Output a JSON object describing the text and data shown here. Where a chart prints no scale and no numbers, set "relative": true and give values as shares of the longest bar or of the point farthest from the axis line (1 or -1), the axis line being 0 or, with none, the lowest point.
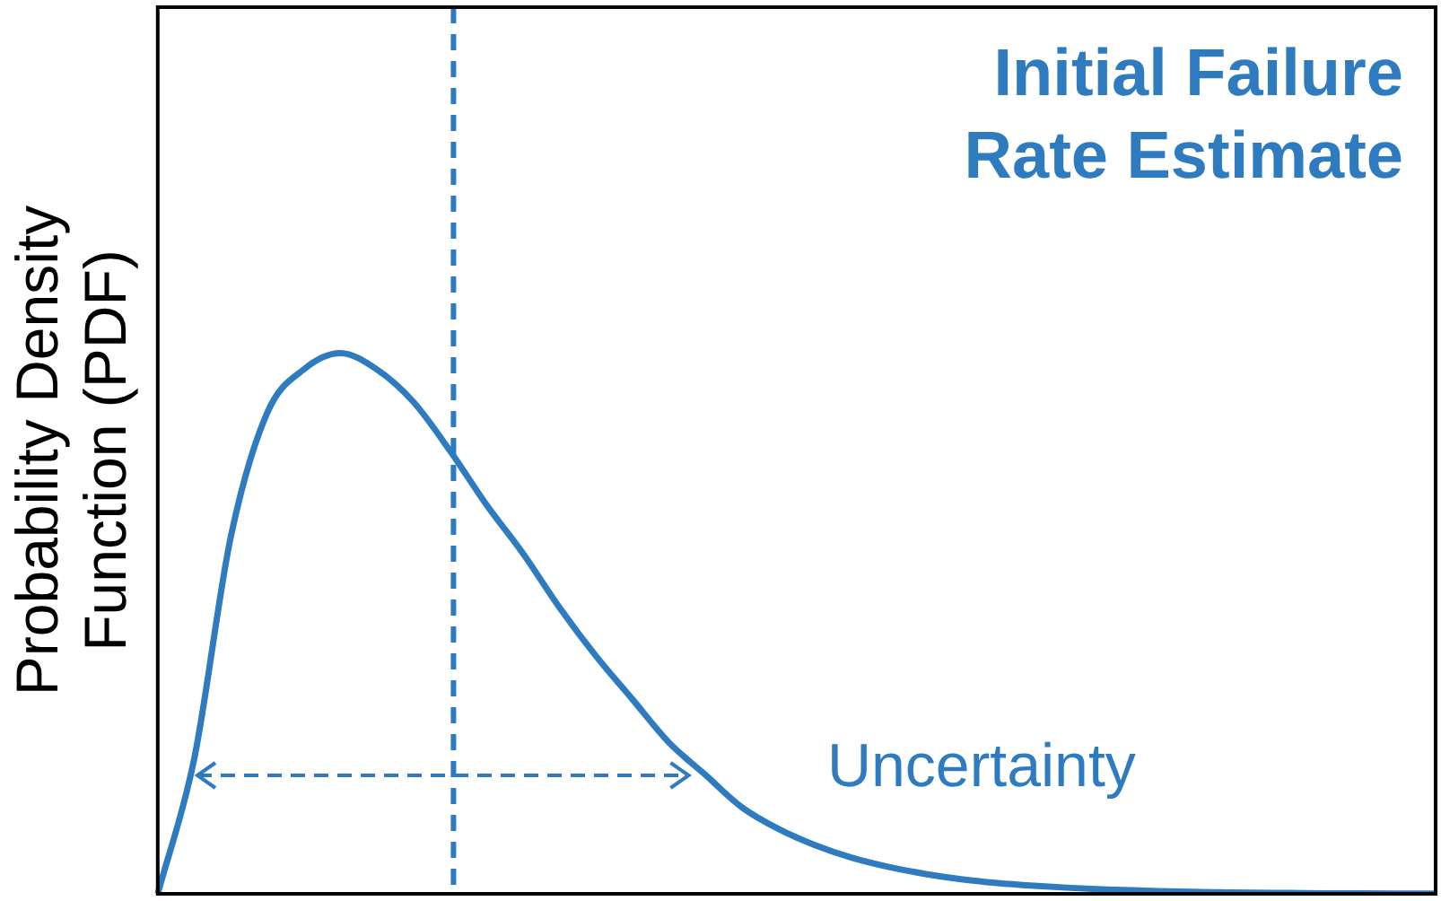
{
  "chart_data": {
    "type": "line",
    "title": "Initial Failure Rate Estimate",
    "ylabel": "Probability Density Function (PDF)",
    "relative": true,
    "marker": "none",
    "line_style": "solid",
    "grid": false,
    "legend": false,
    "tick_labels": false,
    "categories": [
      null,
      null,
      null,
      null,
      null,
      null,
      null,
      null,
      null,
      null,
      null,
      null,
      null,
      null,
      null,
      null,
      null,
      null,
      null,
      null,
      null,
      null,
      null,
      null,
      null,
      null,
      null,
      null,
      null,
      null,
      null,
      null,
      null,
      null,
      null,
      null
    ],
    "series": [
      {
        "color": "#2e7bbf",
        "values": [
          0,
          0.25,
          0.66,
          0.89,
          0.97,
          1,
          0.97,
          0.91,
          0.82,
          0.72,
          0.63,
          0.53,
          0.44,
          0.36,
          0.28,
          0.22,
          0.16,
          0.12,
          0.09,
          0.067,
          0.05,
          0.037,
          0.027,
          0.02,
          0.015,
          0.011,
          0.008,
          0.006,
          0.004,
          0.003,
          0.002,
          0.0015,
          0.001,
          0.0007,
          0.0005,
          0.0003
        ]
      }
    ],
    "annotations": [
      "Uncertainty"
    ]
  }
}
